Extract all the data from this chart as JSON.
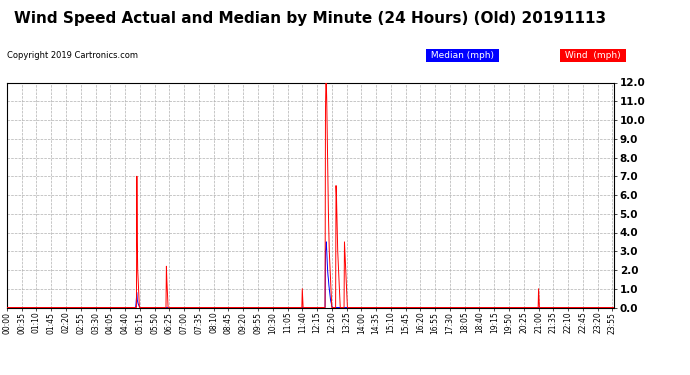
{
  "title": "Wind Speed Actual and Median by Minute (24 Hours) (Old) 20191113",
  "copyright": "Copyright 2019 Cartronics.com",
  "ylim": [
    0.0,
    12.0
  ],
  "yticks": [
    0.0,
    1.0,
    2.0,
    3.0,
    4.0,
    5.0,
    6.0,
    7.0,
    8.0,
    9.0,
    10.0,
    11.0,
    12.0
  ],
  "background_color": "#ffffff",
  "grid_color": "#b0b0b0",
  "title_fontsize": 11,
  "minutes_per_day": 1440,
  "wind_spikes": [
    {
      "minute": 308,
      "value": 7.0
    },
    {
      "minute": 309,
      "value": 3.5
    },
    {
      "minute": 310,
      "value": 2.0
    },
    {
      "minute": 311,
      "value": 1.5
    },
    {
      "minute": 312,
      "value": 1.0
    },
    {
      "minute": 313,
      "value": 0.5
    },
    {
      "minute": 378,
      "value": 2.2
    },
    {
      "minute": 379,
      "value": 1.5
    },
    {
      "minute": 380,
      "value": 1.0
    },
    {
      "minute": 381,
      "value": 0.5
    },
    {
      "minute": 700,
      "value": 1.0
    },
    {
      "minute": 701,
      "value": 0.5
    },
    {
      "minute": 755,
      "value": 10.5
    },
    {
      "minute": 756,
      "value": 12.0
    },
    {
      "minute": 757,
      "value": 12.0
    },
    {
      "minute": 758,
      "value": 11.0
    },
    {
      "minute": 759,
      "value": 9.5
    },
    {
      "minute": 760,
      "value": 8.0
    },
    {
      "minute": 761,
      "value": 6.5
    },
    {
      "minute": 762,
      "value": 5.0
    },
    {
      "minute": 763,
      "value": 4.0
    },
    {
      "minute": 764,
      "value": 3.0
    },
    {
      "minute": 765,
      "value": 2.5
    },
    {
      "minute": 766,
      "value": 2.0
    },
    {
      "minute": 767,
      "value": 1.5
    },
    {
      "minute": 768,
      "value": 1.0
    },
    {
      "minute": 769,
      "value": 0.5
    },
    {
      "minute": 780,
      "value": 6.5
    },
    {
      "minute": 781,
      "value": 6.0
    },
    {
      "minute": 782,
      "value": 5.0
    },
    {
      "minute": 783,
      "value": 4.0
    },
    {
      "minute": 784,
      "value": 3.0
    },
    {
      "minute": 785,
      "value": 2.5
    },
    {
      "minute": 786,
      "value": 2.0
    },
    {
      "minute": 787,
      "value": 1.5
    },
    {
      "minute": 788,
      "value": 1.0
    },
    {
      "minute": 789,
      "value": 0.5
    },
    {
      "minute": 800,
      "value": 3.5
    },
    {
      "minute": 801,
      "value": 3.0
    },
    {
      "minute": 802,
      "value": 2.5
    },
    {
      "minute": 803,
      "value": 2.0
    },
    {
      "minute": 804,
      "value": 1.5
    },
    {
      "minute": 805,
      "value": 1.0
    },
    {
      "minute": 806,
      "value": 0.5
    },
    {
      "minute": 1260,
      "value": 1.0
    },
    {
      "minute": 1261,
      "value": 0.5
    }
  ],
  "median_spikes": [
    {
      "minute": 306,
      "value": 0.2
    },
    {
      "minute": 307,
      "value": 0.5
    },
    {
      "minute": 308,
      "value": 0.8
    },
    {
      "minute": 309,
      "value": 0.4
    },
    {
      "minute": 310,
      "value": 0.3
    },
    {
      "minute": 311,
      "value": 0.2
    },
    {
      "minute": 312,
      "value": 0.15
    },
    {
      "minute": 313,
      "value": 0.1
    },
    {
      "minute": 314,
      "value": 0.05
    },
    {
      "minute": 755,
      "value": 3.0
    },
    {
      "minute": 756,
      "value": 3.2
    },
    {
      "minute": 757,
      "value": 3.5
    },
    {
      "minute": 758,
      "value": 3.0
    },
    {
      "minute": 759,
      "value": 2.5
    },
    {
      "minute": 760,
      "value": 2.0
    },
    {
      "minute": 761,
      "value": 1.7
    },
    {
      "minute": 762,
      "value": 1.5
    },
    {
      "minute": 763,
      "value": 1.2
    },
    {
      "minute": 764,
      "value": 1.0
    },
    {
      "minute": 765,
      "value": 0.8
    },
    {
      "minute": 766,
      "value": 0.6
    },
    {
      "minute": 767,
      "value": 0.4
    },
    {
      "minute": 768,
      "value": 0.3
    },
    {
      "minute": 769,
      "value": 0.2
    },
    {
      "minute": 770,
      "value": 0.1
    }
  ],
  "xtick_interval": 35,
  "xtick_labels": [
    "00:00",
    "00:35",
    "01:10",
    "01:45",
    "02:20",
    "02:55",
    "03:30",
    "04:05",
    "04:40",
    "05:15",
    "05:50",
    "06:25",
    "07:00",
    "07:35",
    "08:10",
    "08:45",
    "09:20",
    "09:55",
    "10:30",
    "11:05",
    "11:40",
    "12:15",
    "12:50",
    "13:25",
    "14:00",
    "14:35",
    "15:10",
    "15:45",
    "16:20",
    "16:55",
    "17:30",
    "18:05",
    "18:40",
    "19:15",
    "19:50",
    "20:25",
    "21:00",
    "21:35",
    "22:10",
    "22:45",
    "23:20",
    "23:55"
  ]
}
